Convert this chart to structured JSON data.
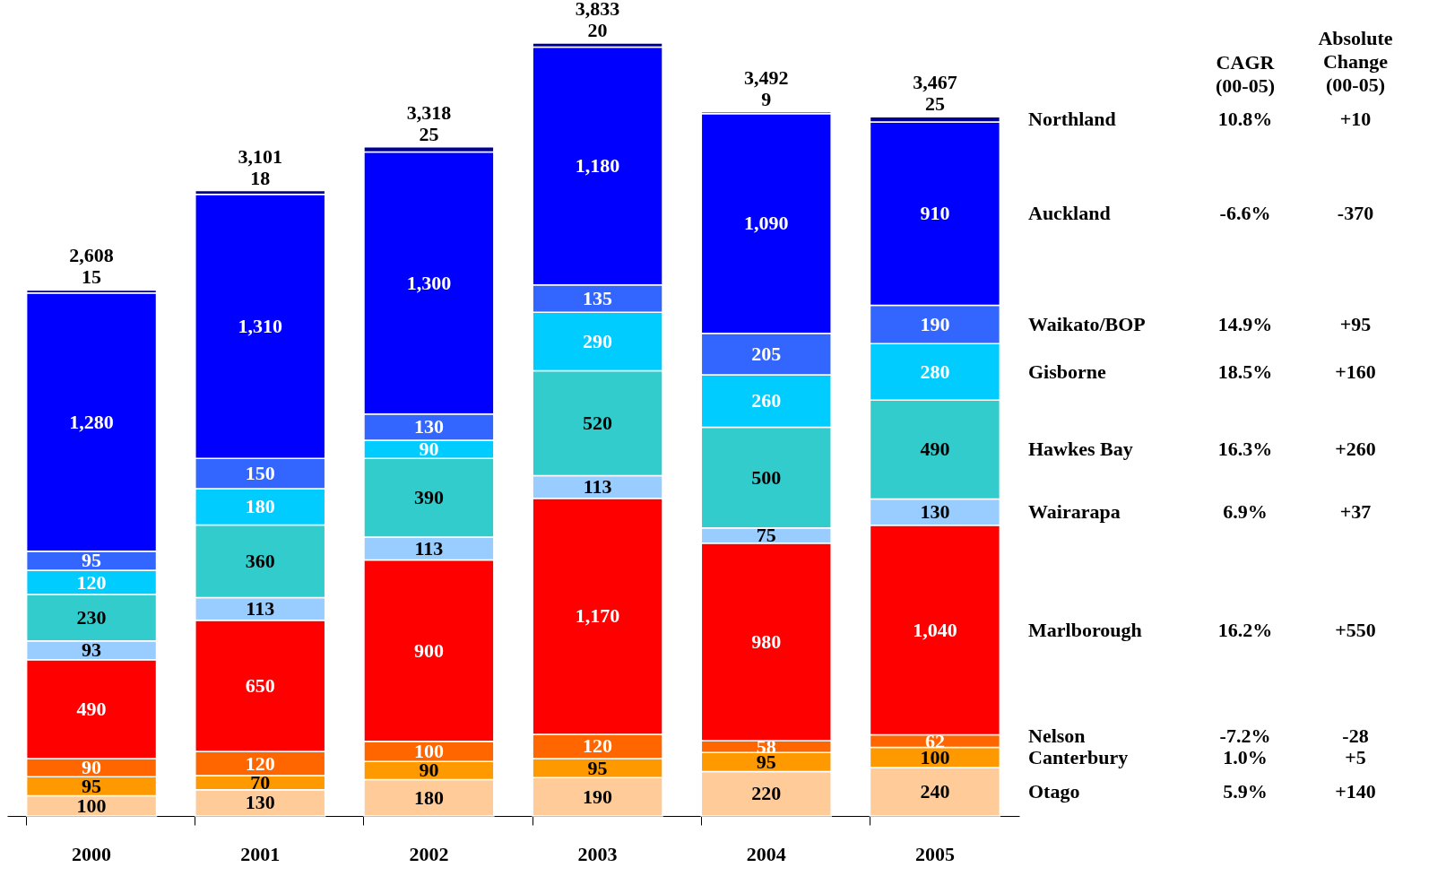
{
  "chart_data": {
    "type": "bar",
    "stacked": true,
    "grid": false,
    "categories": [
      "2000",
      "2001",
      "2002",
      "2003",
      "2004",
      "2005"
    ],
    "series": [
      {
        "name": "Otago",
        "color": "#ffcc99",
        "values": [
          100,
          130,
          180,
          190,
          220,
          240
        ],
        "value_labels": [
          "100",
          "130",
          "180",
          "190",
          "220",
          "240"
        ]
      },
      {
        "name": "Canterbury",
        "color": "#ff9900",
        "values": [
          95,
          70,
          90,
          95,
          95,
          100
        ],
        "value_labels": [
          "95",
          "70",
          "90",
          "95",
          "95",
          "100"
        ]
      },
      {
        "name": "Nelson",
        "color": "#ff6600",
        "values": [
          90,
          120,
          100,
          120,
          58,
          62
        ],
        "value_labels": [
          "90",
          "120",
          "100",
          "120",
          "58",
          "62"
        ]
      },
      {
        "name": "Marlborough",
        "color": "#ff0000",
        "values": [
          490,
          650,
          900,
          1170,
          980,
          1040
        ],
        "value_labels": [
          "490",
          "650",
          "900",
          "1,170",
          "980",
          "1,040"
        ]
      },
      {
        "name": "Wairarapa",
        "color": "#99ccff",
        "values": [
          93,
          113,
          113,
          113,
          75,
          130
        ],
        "value_labels": [
          "93",
          "113",
          "113",
          "113",
          "75",
          "130"
        ]
      },
      {
        "name": "Hawkes Bay",
        "color": "#33cccc",
        "values": [
          230,
          360,
          390,
          520,
          500,
          490
        ],
        "value_labels": [
          "230",
          "360",
          "390",
          "520",
          "500",
          "490"
        ]
      },
      {
        "name": "Gisborne",
        "color": "#00ccff",
        "values": [
          120,
          180,
          90,
          290,
          260,
          280
        ],
        "value_labels": [
          "120",
          "180",
          "90",
          "290",
          "260",
          "280"
        ]
      },
      {
        "name": "Waikato/BOP",
        "color": "#3366ff",
        "values": [
          95,
          150,
          130,
          135,
          205,
          190
        ],
        "value_labels": [
          "95",
          "150",
          "130",
          "135",
          "205",
          "190"
        ]
      },
      {
        "name": "Auckland",
        "color": "#0000ff",
        "values": [
          1280,
          1310,
          1300,
          1180,
          1090,
          910
        ],
        "value_labels": [
          "1,280",
          "1,310",
          "1,300",
          "1,180",
          "1,090",
          "910"
        ]
      },
      {
        "name": "Northland",
        "color": "#000099",
        "values": [
          15,
          18,
          25,
          20,
          9,
          25
        ],
        "value_labels": [
          "15",
          "18",
          "25",
          "20",
          "9",
          "25"
        ]
      }
    ],
    "totals": [
      "2,608",
      "3,101",
      "3,318",
      "3,833",
      "3,492",
      "3,467"
    ],
    "annotations": [
      "CAGR (00-05)",
      "Absolute Change (00-05)",
      "5.9%",
      "+140",
      "1.0%",
      "+5",
      "-7.2%",
      "-28",
      "16.2%",
      "+550",
      "6.9%",
      "+37",
      "16.3%",
      "+260",
      "18.5%",
      "+160",
      "14.9%",
      "+95",
      "-6.6%",
      "-370",
      "10.8%",
      "+10"
    ]
  }
}
